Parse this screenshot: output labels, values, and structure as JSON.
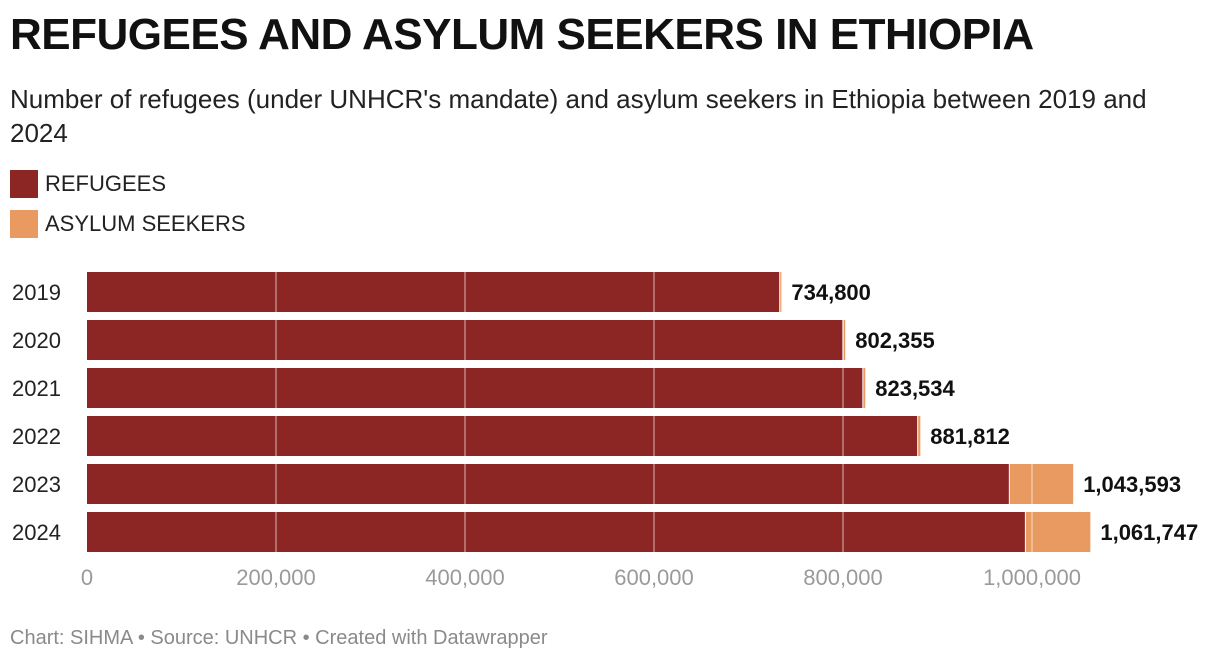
{
  "chart_data": {
    "type": "bar",
    "orientation": "horizontal",
    "stacked": true,
    "title": "REFUGEES AND ASYLUM SEEKERS IN ETHIOPIA",
    "subtitle": "Number of refugees (under UNHCR's mandate) and asylum seekers in Ethiopia between 2019 and 2024",
    "categories": [
      "2019",
      "2020",
      "2021",
      "2022",
      "2023",
      "2024"
    ],
    "series": [
      {
        "name": "REFUGEES",
        "color": "#8B2624",
        "values": [
          733000,
          800000,
          821000,
          879000,
          976000,
          993000
        ]
      },
      {
        "name": "ASYLUM SEEKERS",
        "color": "#E89A60",
        "values": [
          1800,
          2355,
          2534,
          2812,
          67593,
          68747
        ]
      }
    ],
    "totals": [
      "734,800",
      "802,355",
      "823,534",
      "881,812",
      "1,043,593",
      "1,061,747"
    ],
    "xlim": [
      0,
      1060000
    ],
    "xticks": [
      0,
      200000,
      400000,
      600000,
      800000,
      1000000
    ],
    "xtick_labels": [
      "0",
      "200,000",
      "400,000",
      "600,000",
      "800,000",
      "1,000,000"
    ],
    "grid": true,
    "legend_position": "top-left"
  },
  "footer": "Chart: SIHMA • Source: UNHCR • Created with Datawrapper"
}
